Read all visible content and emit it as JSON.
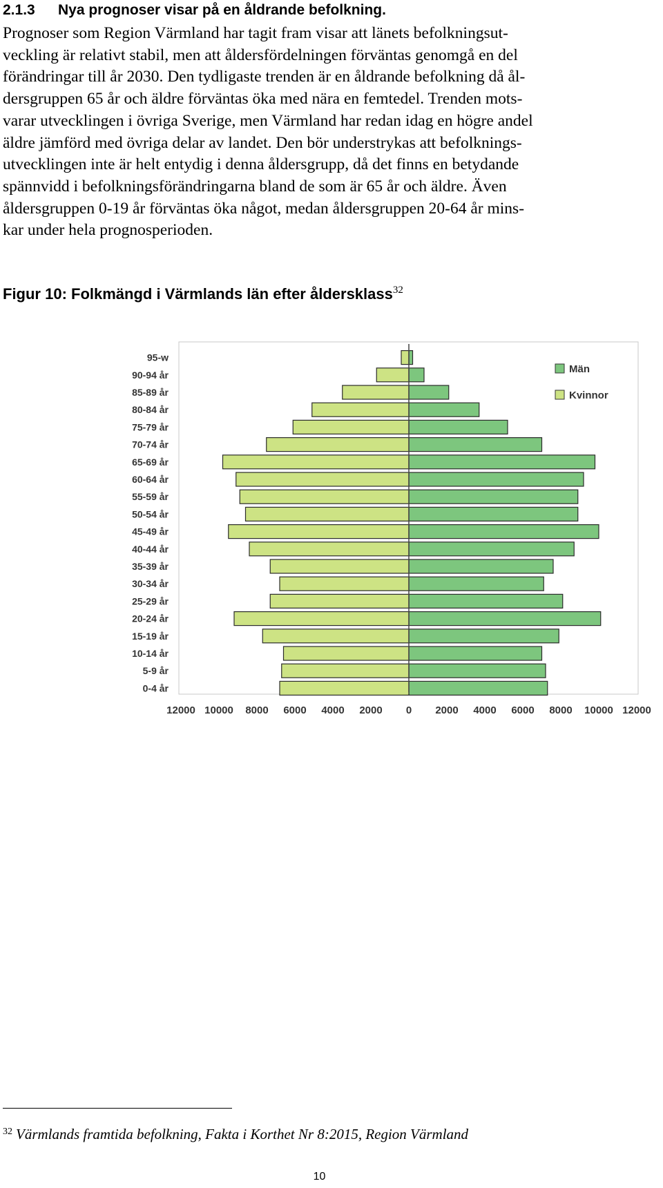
{
  "section": {
    "number": "2.1.3",
    "title": "Nya prognoser visar på en åldrande befolkning."
  },
  "paragraph_lines": [
    "Prognoser som Region Värmland har tagit fram visar att länets befolkningsut-",
    "veckling är relativt stabil, men att åldersfördelningen förväntas genomgå en del",
    "förändringar till år 2030. Den tydligaste trenden är en åldrande befolkning då ål-",
    "dersgruppen 65 år och äldre förväntas öka med nära en femtedel. Trenden mots-",
    "varar utvecklingen i övriga Sverige, men Värmland har redan idag en högre andel",
    "äldre jämförd med övriga delar av landet. Den bör understrykas att befolknings-",
    "utvecklingen inte är helt entydig i denna åldersgrupp, då det finns en betydande",
    "spännvidd i befolkningsförändringarna bland de som är 65 år och äldre. Även",
    "åldersgruppen 0-19 år förväntas öka något, medan åldersgruppen 20-64 år mins-",
    "kar under hela prognosperioden."
  ],
  "figure": {
    "caption": "Figur 10: Folkmängd i Värmlands län efter åldersklass",
    "footnote_ref": "32"
  },
  "chart_data": {
    "type": "bar",
    "orientation": "horizontal",
    "subtype": "population pyramid",
    "categories": [
      "95-w",
      "90-94 år",
      "85-89 år",
      "80-84 år",
      "75-79 år",
      "70-74 år",
      "65-69 år",
      "60-64 år",
      "55-59 år",
      "50-54 år",
      "45-49 år",
      "40-44 år",
      "35-39 år",
      "30-34 år",
      "25-29 år",
      "20-24 år",
      "15-19 år",
      "10-14 år",
      "5-9 år",
      "0-4 år"
    ],
    "series": [
      {
        "name": "Män",
        "side": "right",
        "color": "#7dc67e",
        "values": [
          200,
          800,
          2100,
          3700,
          5200,
          7000,
          9800,
          9200,
          8900,
          8900,
          10000,
          8700,
          7600,
          7100,
          8100,
          10100,
          7900,
          7000,
          7200,
          7300
        ]
      },
      {
        "name": "Kvinnor",
        "side": "left",
        "color": "#cde384",
        "values": [
          400,
          1700,
          3500,
          5100,
          6100,
          7500,
          9800,
          9100,
          8900,
          8600,
          9500,
          8400,
          7300,
          6800,
          7300,
          9200,
          7700,
          6600,
          6700,
          6800
        ]
      }
    ],
    "xlim": [
      -12000,
      12000
    ],
    "xticks": [
      -12000,
      -10000,
      -8000,
      -6000,
      -4000,
      -2000,
      0,
      2000,
      4000,
      6000,
      8000,
      10000,
      12000
    ],
    "xtick_labels": [
      "12000",
      "10000",
      "8000",
      "6000",
      "4000",
      "2000",
      "0",
      "2000",
      "4000",
      "6000",
      "8000",
      "10000",
      "12000"
    ],
    "legend": {
      "position": "top-right",
      "entries": [
        "Män",
        "Kvinnor"
      ]
    },
    "grid": false,
    "title": "",
    "xlabel": "",
    "ylabel": ""
  },
  "footnote": {
    "number": "32",
    "text": "Värmlands framtida befolkning, Fakta i Korthet Nr 8:2015, Region Värmland"
  },
  "page_number": "10"
}
